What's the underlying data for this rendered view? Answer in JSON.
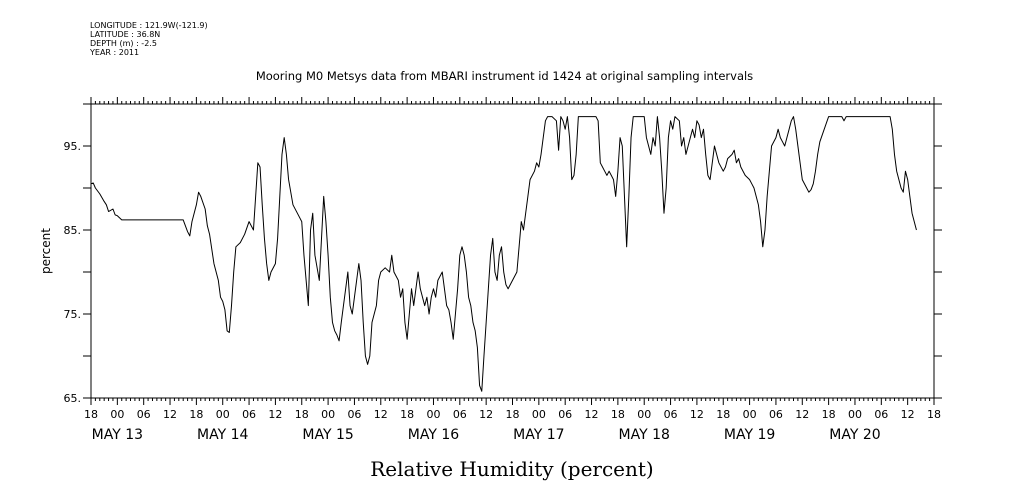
{
  "meta": {
    "longitude": "LONGITUDE : 121.9W(-121.9)",
    "latitude": "LATITUDE : 36.8N",
    "depth": "DEPTH (m) : -2.5",
    "year": "YEAR : 2011"
  },
  "chart_data": {
    "type": "line",
    "title": "Mooring M0 Metsys data from MBARI instrument id 1424 at original sampling intervals",
    "xlabel": "Relative Humidity (percent)",
    "ylabel": "percent",
    "x_unit": "hours since 2011-05-12 18:00",
    "xlim": [
      0,
      192
    ],
    "ylim": [
      65,
      100
    ],
    "yticks": [
      65,
      75,
      85,
      95
    ],
    "ytick_labels": [
      "65.",
      "75.",
      "85.",
      "95."
    ],
    "hour_ticks": [
      "18",
      "00",
      "06",
      "12",
      "18",
      "00",
      "06",
      "12",
      "18",
      "00",
      "06",
      "12",
      "18",
      "00",
      "06",
      "12",
      "18",
      "00",
      "06",
      "12",
      "18",
      "00",
      "06",
      "12",
      "18",
      "00",
      "06",
      "12",
      "18",
      "00",
      "06",
      "12",
      "18"
    ],
    "day_labels": [
      {
        "label": "MAY 13",
        "hour": 6
      },
      {
        "label": "MAY 14",
        "hour": 30
      },
      {
        "label": "MAY 15",
        "hour": 54
      },
      {
        "label": "MAY 16",
        "hour": 78
      },
      {
        "label": "MAY 17",
        "hour": 102
      },
      {
        "label": "MAY 18",
        "hour": 126
      },
      {
        "label": "MAY 19",
        "hour": 150
      },
      {
        "label": "MAY 20",
        "hour": 174
      }
    ],
    "grid": false,
    "series": [
      {
        "values": [
          [
            0,
            90.5
          ],
          [
            0.5,
            90.6
          ],
          [
            1,
            90
          ],
          [
            2,
            89.3
          ],
          [
            3,
            88.4
          ],
          [
            3.5,
            88
          ],
          [
            4,
            87.2
          ],
          [
            5,
            87.5
          ],
          [
            5.5,
            86.8
          ],
          [
            6,
            86.7
          ],
          [
            7,
            86.2
          ],
          [
            9,
            86.2
          ],
          [
            12,
            86.2
          ],
          [
            16,
            86.2
          ],
          [
            18,
            86.2
          ],
          [
            20,
            86.2
          ],
          [
            21,
            86.2
          ],
          [
            22,
            84.8
          ],
          [
            22.5,
            84.3
          ],
          [
            23,
            86
          ],
          [
            24,
            88
          ],
          [
            24.5,
            89.5
          ],
          [
            25,
            89
          ],
          [
            26,
            87.5
          ],
          [
            26.5,
            85.5
          ],
          [
            27,
            84.5
          ],
          [
            28,
            81
          ],
          [
            29,
            79
          ],
          [
            29.5,
            77
          ],
          [
            30,
            76.5
          ],
          [
            30.5,
            75.5
          ],
          [
            31,
            73
          ],
          [
            31.5,
            72.8
          ],
          [
            32,
            76
          ],
          [
            32.5,
            80
          ],
          [
            33,
            83
          ],
          [
            34,
            83.5
          ],
          [
            35,
            84.5
          ],
          [
            36,
            86
          ],
          [
            37,
            85
          ],
          [
            37.5,
            89
          ],
          [
            38,
            93
          ],
          [
            38.5,
            92.5
          ],
          [
            39,
            88
          ],
          [
            39.5,
            84
          ],
          [
            40,
            81
          ],
          [
            40.5,
            79
          ],
          [
            41,
            80
          ],
          [
            42,
            81
          ],
          [
            42.5,
            84
          ],
          [
            43,
            89
          ],
          [
            43.5,
            94
          ],
          [
            44,
            96
          ],
          [
            44.5,
            94
          ],
          [
            45,
            91
          ],
          [
            46,
            88
          ],
          [
            47,
            87
          ],
          [
            48,
            86
          ],
          [
            48.5,
            82
          ],
          [
            49,
            79
          ],
          [
            49.5,
            76
          ],
          [
            50,
            85
          ],
          [
            50.5,
            87
          ],
          [
            51,
            82
          ],
          [
            52,
            79
          ],
          [
            52.5,
            84
          ],
          [
            53,
            89
          ],
          [
            53.5,
            86
          ],
          [
            54,
            82
          ],
          [
            54.5,
            77
          ],
          [
            55,
            74
          ],
          [
            55.5,
            73
          ],
          [
            56,
            72.5
          ],
          [
            56.5,
            71.8
          ],
          [
            57,
            74
          ],
          [
            57.5,
            76
          ],
          [
            58,
            78
          ],
          [
            58.5,
            80
          ],
          [
            59,
            76
          ],
          [
            59.5,
            75
          ],
          [
            60,
            77
          ],
          [
            60.5,
            79
          ],
          [
            61,
            81
          ],
          [
            61.5,
            79
          ],
          [
            62,
            74
          ],
          [
            62.5,
            70
          ],
          [
            63,
            69
          ],
          [
            63.5,
            70
          ],
          [
            64,
            74
          ],
          [
            65,
            76
          ],
          [
            65.5,
            79
          ],
          [
            66,
            80
          ],
          [
            67,
            80.5
          ],
          [
            68,
            80
          ],
          [
            68.5,
            82
          ],
          [
            69,
            80
          ],
          [
            70,
            79
          ],
          [
            70.5,
            77
          ],
          [
            71,
            78
          ],
          [
            71.5,
            74
          ],
          [
            72,
            72
          ],
          [
            72.5,
            75
          ],
          [
            73,
            78
          ],
          [
            73.5,
            76
          ],
          [
            74,
            78
          ],
          [
            74.5,
            80
          ],
          [
            75,
            78
          ],
          [
            76,
            76
          ],
          [
            76.5,
            77
          ],
          [
            77,
            75
          ],
          [
            77.5,
            77
          ],
          [
            78,
            78
          ],
          [
            78.5,
            77
          ],
          [
            79,
            79
          ],
          [
            80,
            80
          ],
          [
            80.5,
            78
          ],
          [
            81,
            76
          ],
          [
            81.5,
            75.5
          ],
          [
            82,
            74
          ],
          [
            82.5,
            72
          ],
          [
            83,
            75
          ],
          [
            83.5,
            78
          ],
          [
            84,
            82
          ],
          [
            84.5,
            83
          ],
          [
            85,
            82
          ],
          [
            85.5,
            80
          ],
          [
            86,
            77
          ],
          [
            86.5,
            76
          ],
          [
            87,
            74
          ],
          [
            87.5,
            73
          ],
          [
            88,
            71
          ],
          [
            88.5,
            66.5
          ],
          [
            89,
            65.8
          ],
          [
            89.5,
            70
          ],
          [
            90,
            74
          ],
          [
            90.5,
            78
          ],
          [
            91,
            82
          ],
          [
            91.5,
            84
          ],
          [
            92,
            80
          ],
          [
            92.5,
            79
          ],
          [
            93,
            82
          ],
          [
            93.5,
            83
          ],
          [
            94,
            80
          ],
          [
            94.5,
            78.5
          ],
          [
            95,
            78
          ],
          [
            96,
            79
          ],
          [
            97,
            80
          ],
          [
            97.5,
            83
          ],
          [
            98,
            86
          ],
          [
            98.5,
            85
          ],
          [
            99,
            87
          ],
          [
            99.5,
            89
          ],
          [
            100,
            91
          ],
          [
            101,
            92
          ],
          [
            101.5,
            93
          ],
          [
            102,
            92.5
          ],
          [
            102.5,
            94
          ],
          [
            103,
            96
          ],
          [
            103.5,
            98
          ],
          [
            104,
            98.5
          ],
          [
            105,
            98.5
          ],
          [
            106,
            98
          ],
          [
            106.5,
            94.5
          ],
          [
            107,
            98.5
          ],
          [
            107.5,
            98
          ],
          [
            108,
            97
          ],
          [
            108.5,
            98.5
          ],
          [
            109,
            96
          ],
          [
            109.5,
            91
          ],
          [
            110,
            91.5
          ],
          [
            110.5,
            94
          ],
          [
            111,
            98.5
          ],
          [
            112,
            98.5
          ],
          [
            113,
            98.5
          ],
          [
            115,
            98.5
          ],
          [
            115.5,
            98
          ],
          [
            116,
            93
          ],
          [
            116.5,
            92.5
          ],
          [
            117,
            92
          ],
          [
            117.5,
            91.5
          ],
          [
            118,
            92
          ],
          [
            118.5,
            91.5
          ],
          [
            119,
            91
          ],
          [
            119.5,
            89
          ],
          [
            120,
            92
          ],
          [
            120.5,
            96
          ],
          [
            121,
            95
          ],
          [
            121.5,
            89
          ],
          [
            122,
            83
          ],
          [
            122.5,
            89
          ],
          [
            123,
            96
          ],
          [
            123.5,
            98.5
          ],
          [
            125,
            98.5
          ],
          [
            126,
            98.5
          ],
          [
            126.5,
            96
          ],
          [
            127,
            95
          ],
          [
            127.5,
            94
          ],
          [
            128,
            96
          ],
          [
            128.5,
            95
          ],
          [
            129,
            98.5
          ],
          [
            129.5,
            96
          ],
          [
            130,
            92
          ],
          [
            130.5,
            87
          ],
          [
            131,
            90
          ],
          [
            131.5,
            96
          ],
          [
            132,
            98
          ],
          [
            132.5,
            97
          ],
          [
            133,
            98.5
          ],
          [
            134,
            98
          ],
          [
            134.5,
            95
          ],
          [
            135,
            96
          ],
          [
            135.5,
            94
          ],
          [
            136,
            95
          ],
          [
            137,
            97
          ],
          [
            137.5,
            96
          ],
          [
            138,
            98
          ],
          [
            138.5,
            97.5
          ],
          [
            139,
            96
          ],
          [
            139.5,
            97
          ],
          [
            140,
            94
          ],
          [
            140.5,
            91.5
          ],
          [
            141,
            91
          ],
          [
            141.5,
            93
          ],
          [
            142,
            95
          ],
          [
            142.5,
            94
          ],
          [
            143,
            93
          ],
          [
            144,
            92
          ],
          [
            144.5,
            92.5
          ],
          [
            145,
            93.5
          ],
          [
            146,
            94
          ],
          [
            146.5,
            94.5
          ],
          [
            147,
            93
          ],
          [
            147.5,
            93.5
          ],
          [
            148,
            92.5
          ],
          [
            149,
            91.5
          ],
          [
            150,
            91
          ],
          [
            150.5,
            90.5
          ],
          [
            151,
            90
          ],
          [
            151.5,
            89
          ],
          [
            152,
            88
          ],
          [
            152.5,
            86
          ],
          [
            153,
            83
          ],
          [
            153.5,
            85
          ],
          [
            154,
            89
          ],
          [
            154.5,
            92
          ],
          [
            155,
            95
          ],
          [
            156,
            96
          ],
          [
            156.5,
            97
          ],
          [
            157,
            96
          ],
          [
            157.5,
            95.5
          ],
          [
            158,
            95
          ],
          [
            158.5,
            96
          ],
          [
            159,
            97
          ],
          [
            159.5,
            98
          ],
          [
            160,
            98.5
          ],
          [
            160.5,
            97
          ],
          [
            161,
            95
          ],
          [
            161.5,
            93
          ],
          [
            162,
            91
          ],
          [
            163,
            90
          ],
          [
            163.5,
            89.5
          ],
          [
            164,
            89.8
          ],
          [
            164.5,
            90.5
          ],
          [
            165,
            92
          ],
          [
            165.5,
            94
          ],
          [
            166,
            95.5
          ],
          [
            167,
            97
          ],
          [
            168,
            98.5
          ],
          [
            170,
            98.5
          ],
          [
            171,
            98.5
          ],
          [
            171.5,
            98
          ],
          [
            172,
            98.5
          ],
          [
            174,
            98.5
          ],
          [
            178,
            98.5
          ],
          [
            181,
            98.5
          ],
          [
            182,
            98.5
          ],
          [
            182.5,
            97
          ],
          [
            183,
            94
          ],
          [
            183.5,
            92
          ],
          [
            184,
            91
          ],
          [
            184.5,
            90
          ],
          [
            185,
            89.5
          ],
          [
            185.5,
            92
          ],
          [
            186,
            91
          ],
          [
            186.5,
            89
          ],
          [
            187,
            87
          ],
          [
            187.5,
            86
          ],
          [
            188,
            85
          ]
        ]
      }
    ]
  }
}
